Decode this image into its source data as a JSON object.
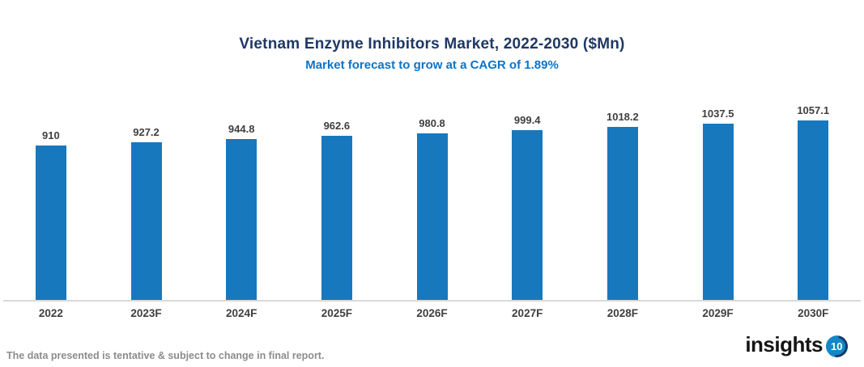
{
  "header": {
    "title": "Vietnam Enzyme Inhibitors Market, 2022-2030 ($Mn)",
    "subtitle": "Market forecast to grow at a CAGR of 1.89%"
  },
  "chart_data": {
    "type": "bar",
    "title": "Vietnam Enzyme Inhibitors Market, 2022-2030 ($Mn)",
    "subtitle": "Market forecast to grow at a CAGR of 1.89%",
    "categories": [
      "2022",
      "2023F",
      "2024F",
      "2025F",
      "2026F",
      "2027F",
      "2028F",
      "2029F",
      "2030F"
    ],
    "values": [
      910,
      927.2,
      944.8,
      962.6,
      980.8,
      999.4,
      1018.2,
      1037.5,
      1057.1
    ],
    "xlabel": "",
    "ylabel": "",
    "ylim": [
      0,
      1250
    ],
    "grid": false,
    "legend": "none",
    "data_labels": true,
    "bar_color": "#1778BE",
    "axis_line_color": "#D9D9D9",
    "label_color": "#3F3F3F"
  },
  "footer": {
    "disclaimer": "The data presented is tentative & subject to change in final report.",
    "logo_text": "insights",
    "logo_badge": "10"
  },
  "colors": {
    "title": "#1F3864",
    "subtitle": "#0C74C8",
    "bar": "#1778BE",
    "logo_circle": "#1487C9",
    "disclaimer": "#8C8C8C"
  }
}
